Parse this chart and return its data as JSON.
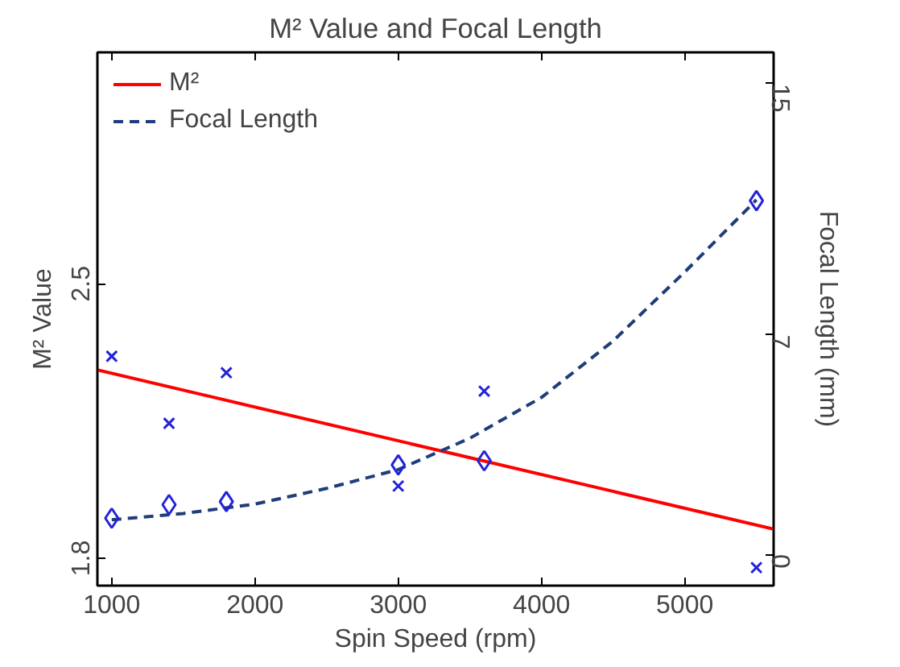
{
  "chart_data": {
    "type": "line",
    "title": "M² Value and Focal Length",
    "xlabel": "Spin Speed (rpm)",
    "ylabel": "M² Value",
    "y2label": "Focal Length (mm)",
    "xlim": [
      900,
      5620
    ],
    "xticks": [
      1000,
      2000,
      3000,
      4000,
      5000
    ],
    "ylim": [
      1.73,
      3.09
    ],
    "yticks": [
      1.8,
      2.5
    ],
    "y2lim": [
      -1,
      16
    ],
    "y2ticks": [
      0,
      7,
      15
    ],
    "legend": "top left",
    "grid": false,
    "series": [
      {
        "name": "M²",
        "color": "#ff0000",
        "line_style": "solid",
        "marker": "none",
        "x": [
          900,
          5620
        ],
        "values": [
          2.28,
          1.874
        ]
      },
      {
        "name": "Focal Length",
        "color": "#1f3d7a",
        "line_style": "dashed",
        "marker": "none",
        "axis": "y2",
        "x": [
          1000,
          1500,
          2000,
          2500,
          3000,
          3500,
          4000,
          4500,
          5000,
          5500
        ],
        "values": [
          1.1,
          1.3,
          1.6,
          2.1,
          2.7,
          3.7,
          5.0,
          6.8,
          9.0,
          11.3
        ]
      },
      {
        "type": "scatter",
        "color": "#2323d9",
        "marker": "cross",
        "x": [
          1000,
          1400,
          1800,
          3000,
          3600,
          5500
        ],
        "values": [
          2.315,
          2.144,
          2.273,
          1.984,
          2.226,
          1.776
        ]
      },
      {
        "type": "scatter",
        "color": "#2323d9",
        "marker": "diamond",
        "axis": "y2",
        "x": [
          1000,
          1400,
          1800,
          3000,
          3600,
          5500
        ],
        "values": [
          1.15,
          1.58,
          1.68,
          2.85,
          2.98,
          11.27
        ]
      }
    ]
  }
}
